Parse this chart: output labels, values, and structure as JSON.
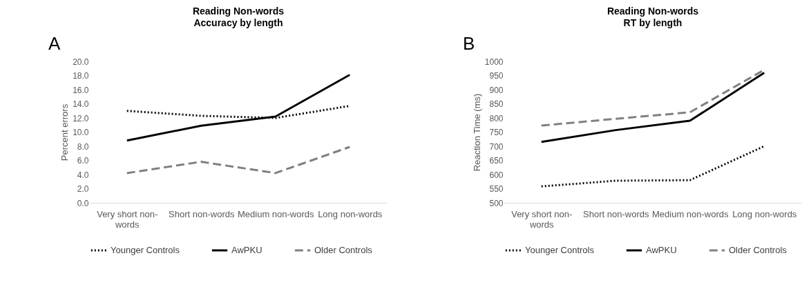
{
  "chart_data": [
    {
      "type": "line",
      "title": "Reading Non-words",
      "subtitle": "Accuracy by length",
      "ylabel": "Percent errors",
      "annotations": [
        "A"
      ],
      "categories": [
        "Very short non-words",
        "Short non-words",
        "Medium non-words",
        "Long non-words"
      ],
      "series": [
        {
          "name": "Younger Controls",
          "color": "#000000",
          "line_style": "dotted",
          "values": [
            13.0,
            12.3,
            12.0,
            13.7
          ]
        },
        {
          "name": "AwPKU",
          "color": "#000000",
          "line_style": "solid",
          "values": [
            8.8,
            10.9,
            12.2,
            18.1
          ]
        },
        {
          "name": "Older Controls",
          "color": "#808080",
          "line_style": "dashed",
          "values": [
            4.2,
            5.8,
            4.2,
            7.9
          ]
        }
      ],
      "ylim": [
        0,
        20
      ],
      "yticks": [
        {
          "value": 0,
          "label": "0.0"
        },
        {
          "value": 2,
          "label": "2.0"
        },
        {
          "value": 4,
          "label": "4.0"
        },
        {
          "value": 6,
          "label": "6.0"
        },
        {
          "value": 8,
          "label": "8.0"
        },
        {
          "value": 10,
          "label": "10.0"
        },
        {
          "value": 12,
          "label": "12.0"
        },
        {
          "value": 14,
          "label": "14.0"
        },
        {
          "value": 16,
          "label": "16.0"
        },
        {
          "value": 18,
          "label": "18.0"
        },
        {
          "value": 20,
          "label": "20.0"
        }
      ],
      "grid": false,
      "legend": "bottom",
      "marker": "none"
    },
    {
      "type": "line",
      "title": "Reading Non-words",
      "subtitle": "RT by length",
      "ylabel": "Reaction Time (ms)",
      "annotations": [
        "B"
      ],
      "categories": [
        "Very short non-words",
        "Short non-words",
        "Medium non-words",
        "Long non-words"
      ],
      "series": [
        {
          "name": "Younger Controls",
          "color": "#000000",
          "line_style": "dotted",
          "values": [
            558,
            578,
            580,
            700
          ]
        },
        {
          "name": "AwPKU",
          "color": "#000000",
          "line_style": "solid",
          "values": [
            715,
            757,
            790,
            960
          ]
        },
        {
          "name": "Older Controls",
          "color": "#808080",
          "line_style": "dashed",
          "values": [
            773,
            797,
            820,
            970
          ]
        }
      ],
      "ylim": [
        500,
        1000
      ],
      "yticks": [
        500,
        550,
        600,
        650,
        700,
        750,
        800,
        850,
        900,
        950,
        1000
      ],
      "grid": false,
      "legend": "bottom",
      "marker": "none"
    }
  ]
}
